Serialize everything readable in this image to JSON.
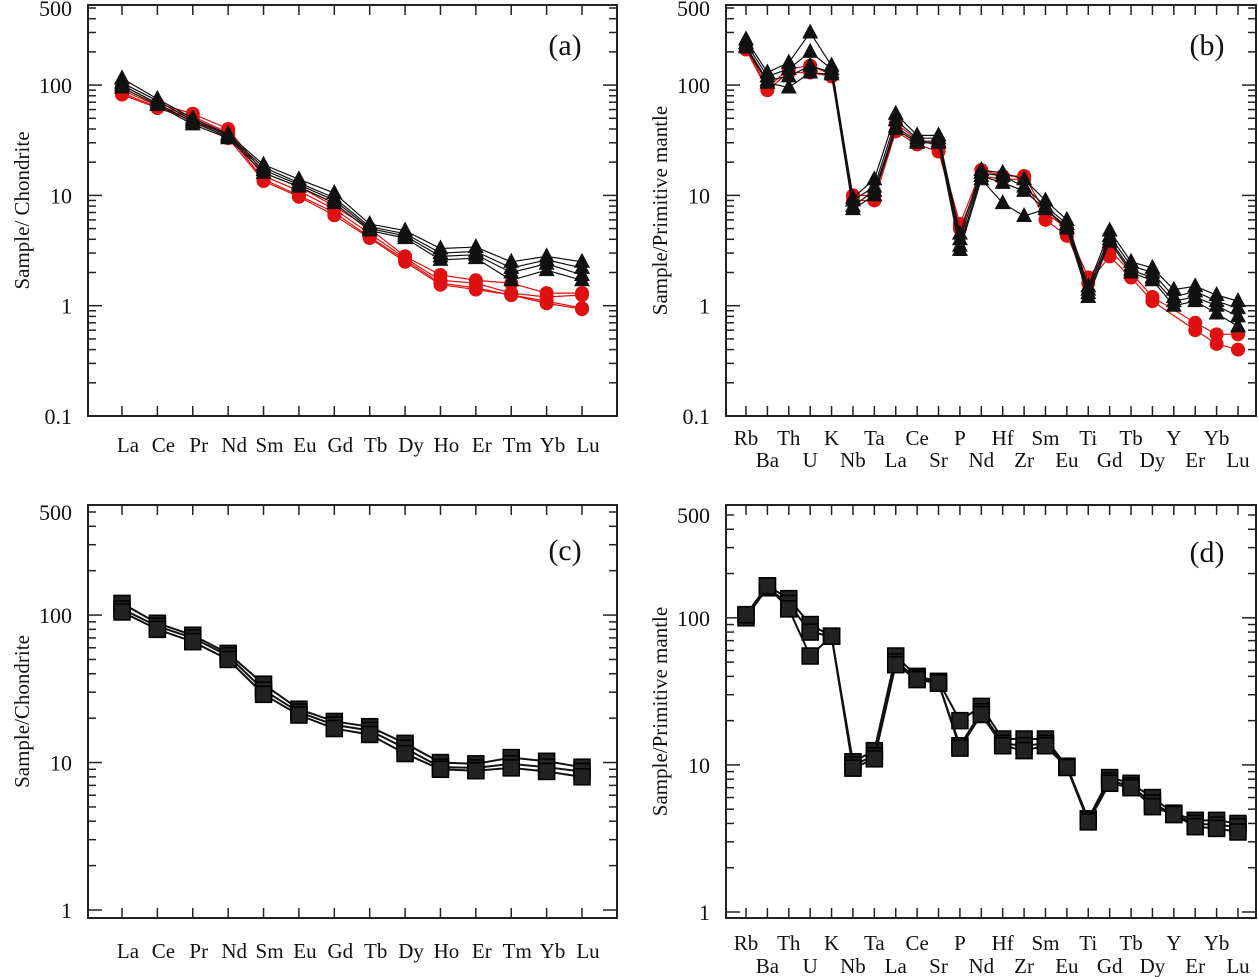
{
  "colors": {
    "triangle_series": "#111111",
    "circle_series": "#e01010",
    "square_series": "#111111"
  },
  "chart_data": [
    {
      "type": "line",
      "panel_label": "(a)",
      "ylabel": "Sample/ Chondrite",
      "yscale": "log",
      "ylim": [
        0.1,
        500
      ],
      "yticks": [
        "0.1",
        "1",
        "10",
        "100",
        "500"
      ],
      "yticks_values": [
        0.1,
        1,
        10,
        100,
        500
      ],
      "categories": [
        "La",
        "Ce",
        "Pr",
        "Nd",
        "Sm",
        "Eu",
        "Gd",
        "Tb",
        "Dy",
        "Ho",
        "Er",
        "Tm",
        "Yb",
        "Lu"
      ],
      "label_rows": 1,
      "series": [
        {
          "marker": "triangle",
          "color": "#111111",
          "values": [
            115,
            75,
            50,
            36,
            19,
            14,
            10.5,
            5.5,
            4.8,
            3.3,
            3.4,
            2.5,
            2.8,
            2.5
          ]
        },
        {
          "marker": "triangle",
          "color": "#111111",
          "values": [
            105,
            72,
            48,
            35,
            18,
            13,
            9.5,
            5.2,
            4.5,
            3.0,
            3.1,
            2.2,
            2.6,
            2.2
          ]
        },
        {
          "marker": "triangle",
          "color": "#111111",
          "values": [
            100,
            68,
            46,
            34,
            17,
            12.5,
            9,
            5,
            4.3,
            2.8,
            2.9,
            2.0,
            2.4,
            1.9
          ]
        },
        {
          "marker": "triangle",
          "color": "#111111",
          "values": [
            95,
            66,
            44,
            33,
            16,
            12,
            8.5,
            4.8,
            4.1,
            2.6,
            2.7,
            1.7,
            2.1,
            1.7
          ]
        },
        {
          "marker": "circle",
          "color": "#e01010",
          "values": [
            100,
            68,
            55,
            40,
            16,
            12,
            8,
            5,
            2.8,
            1.9,
            1.7,
            1.6,
            1.3,
            1.3
          ]
        },
        {
          "marker": "circle",
          "color": "#e01010",
          "values": [
            90,
            65,
            52,
            37,
            15,
            11,
            7.5,
            4.5,
            2.7,
            1.7,
            1.6,
            1.3,
            1.2,
            1.25
          ]
        },
        {
          "marker": "circle",
          "color": "#e01010",
          "values": [
            85,
            63,
            50,
            35,
            14,
            10,
            7,
            4.2,
            2.6,
            1.6,
            1.45,
            1.25,
            1.1,
            0.95
          ]
        },
        {
          "marker": "circle",
          "color": "#e01010",
          "values": [
            82,
            62,
            48,
            33,
            13.5,
            9.7,
            6.6,
            4.1,
            2.5,
            1.55,
            1.4,
            1.25,
            1.05,
            0.93
          ]
        }
      ]
    },
    {
      "type": "line",
      "panel_label": "(b)",
      "ylabel": "Sample/Primitive mantle",
      "yscale": "log",
      "ylim": [
        0.1,
        500
      ],
      "yticks": [
        "0.1",
        "1",
        "10",
        "100",
        "500"
      ],
      "yticks_values": [
        0.1,
        1,
        10,
        100,
        500
      ],
      "categories": [
        "Rb",
        "Ba",
        "Th",
        "U",
        "K",
        "Nb",
        "Ta",
        "La",
        "Ce",
        "Sr",
        "P",
        "Nd",
        "Hf",
        "Zr",
        "Sm",
        "Eu",
        "Ti",
        "Gd",
        "Tb",
        "Dy",
        "Y",
        "Er",
        "Yb",
        "Lu"
      ],
      "label_rows": 2,
      "series": [
        {
          "marker": "triangle",
          "color": "#111111",
          "values": [
            260,
            130,
            160,
            300,
            150,
            9.5,
            14,
            55,
            35,
            35,
            4.5,
            17,
            16,
            14,
            9,
            6,
            1.5,
            4.8,
            2.5,
            2.2,
            1.4,
            1.5,
            1.25,
            1.1
          ]
        },
        {
          "marker": "triangle",
          "color": "#111111",
          "values": [
            240,
            120,
            140,
            200,
            140,
            9,
            12,
            48,
            33,
            33,
            4,
            16,
            15,
            12,
            8,
            5.5,
            1.4,
            4.3,
            2.3,
            2.0,
            1.2,
            1.35,
            1.1,
            0.95
          ]
        },
        {
          "marker": "triangle",
          "color": "#111111",
          "values": [
            225,
            110,
            120,
            150,
            130,
            8,
            11,
            42,
            31,
            31,
            3.5,
            15,
            13,
            11,
            7.5,
            5.2,
            1.3,
            4,
            2.1,
            1.8,
            1.1,
            1.2,
            1.0,
            0.8
          ]
        },
        {
          "marker": "triangle",
          "color": "#111111",
          "values": [
            220,
            105,
            95,
            130,
            125,
            7.5,
            10,
            40,
            30,
            30,
            3.2,
            14,
            8.5,
            6.5,
            7.5,
            5,
            1.2,
            3.8,
            2.0,
            1.7,
            1.0,
            1.1,
            0.85,
            0.65
          ]
        },
        {
          "marker": "circle",
          "color": "#e01010",
          "values": [
            220,
            95,
            140,
            150,
            125,
            10,
            10,
            45,
            32,
            28,
            5.5,
            17,
            15,
            15,
            7,
            5,
            1.8,
            3.2,
            2,
            1.2,
            null,
            0.7,
            0.55,
            0.55
          ]
        },
        {
          "marker": "circle",
          "color": "#e01010",
          "values": [
            210,
            90,
            130,
            130,
            120,
            9,
            9,
            38,
            29,
            25,
            5,
            15,
            14,
            14,
            6,
            4.3,
            1.6,
            2.8,
            1.8,
            1.1,
            null,
            0.6,
            0.45,
            0.4
          ]
        }
      ]
    },
    {
      "type": "line",
      "panel_label": "(c)",
      "ylabel": "Sample/Chondrite",
      "yscale": "log",
      "ylim": [
        1,
        500
      ],
      "yticks": [
        "1",
        "10",
        "100",
        "500"
      ],
      "yticks_values": [
        1,
        10,
        100,
        500
      ],
      "categories": [
        "La",
        "Ce",
        "Pr",
        "Nd",
        "Sm",
        "Eu",
        "Gd",
        "Tb",
        "Dy",
        "Ho",
        "Er",
        "Tm",
        "Yb",
        "Lu"
      ],
      "label_rows": 1,
      "series": [
        {
          "marker": "square",
          "color": "#111111",
          "values": [
            120,
            88,
            73,
            55,
            34,
            23,
            19,
            17.5,
            13.5,
            10,
            9.8,
            10.8,
            10.2,
            9.3
          ]
        },
        {
          "marker": "square",
          "color": "#111111",
          "values": [
            110,
            84,
            70,
            53,
            31,
            22,
            18,
            16.5,
            12.5,
            9.3,
            9.2,
            9.8,
            9.3,
            8.7
          ]
        },
        {
          "marker": "square",
          "color": "#111111",
          "values": [
            105,
            80,
            66,
            50,
            29,
            21,
            17,
            15.5,
            11.5,
            9,
            8.8,
            9.2,
            8.7,
            8.0
          ]
        }
      ]
    },
    {
      "type": "line",
      "panel_label": "(d)",
      "ylabel": "Sample/Primitive mantle",
      "yscale": "log",
      "ylim": [
        1,
        500
      ],
      "yticks": [
        "1",
        "10",
        "100",
        "500"
      ],
      "yticks_values": [
        1,
        10,
        100,
        500
      ],
      "categories": [
        "Rb",
        "Ba",
        "Th",
        "U",
        "K",
        "Nb",
        "Ta",
        "La",
        "Ce",
        "Sr",
        "P",
        "Nd",
        "Hf",
        "Zr",
        "Sm",
        "Eu",
        "Ti",
        "Gd",
        "Tb",
        "Dy",
        "Y",
        "Er",
        "Yb",
        "Lu"
      ],
      "label_rows": 2,
      "series": [
        {
          "marker": "square",
          "color": "#111111",
          "values": [
            105,
            165,
            135,
            90,
            75,
            10.5,
            12.5,
            55,
            40,
            37,
            20,
            25,
            15,
            15,
            15,
            9.8,
            4.3,
            8.2,
            7.5,
            6,
            4.7,
            4.2,
            4.2,
            4
          ]
        },
        {
          "marker": "square",
          "color": "#111111",
          "values": [
            100,
            160,
            125,
            80,
            75,
            10,
            11.5,
            50,
            39,
            36,
            13.5,
            23,
            14,
            13.5,
            14,
            9.7,
            4.2,
            7.8,
            7.2,
            5.5,
            4.6,
            4.0,
            3.9,
            3.8
          ]
        },
        {
          "marker": "square",
          "color": "#111111",
          "values": [
            105,
            165,
            115,
            55,
            75,
            9.5,
            11,
            48,
            38,
            36,
            13,
            22,
            13.5,
            12.5,
            13.5,
            9.6,
            4.1,
            7.5,
            7,
            5.2,
            4.6,
            3.8,
            3.7,
            3.5
          ]
        }
      ]
    }
  ]
}
